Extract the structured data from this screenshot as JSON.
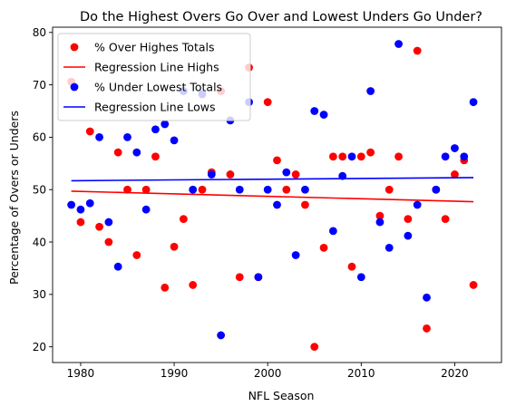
{
  "chart_data": {
    "type": "scatter",
    "title": "Do the Highest Overs Go Over and Lowest Unders Go Under?",
    "xlabel": "NFL Season",
    "ylabel": "Percentage of Overs or Unders",
    "xlim": [
      1977,
      2025
    ],
    "ylim": [
      17,
      81
    ],
    "xticks": [
      1980,
      1990,
      2000,
      2010,
      2020
    ],
    "yticks": [
      20,
      30,
      40,
      50,
      60,
      70,
      80
    ],
    "grid": false,
    "legend_position": "top-left",
    "series": [
      {
        "name": "% Over Highes Totals",
        "kind": "scatter",
        "color": "#ff0000",
        "x": [
          1979,
          1980,
          1981,
          1982,
          1983,
          1984,
          1985,
          1986,
          1987,
          1988,
          1989,
          1990,
          1991,
          1992,
          1993,
          1994,
          1995,
          1996,
          1997,
          1998,
          1999,
          2000,
          2001,
          2002,
          2003,
          2004,
          2005,
          2006,
          2007,
          2008,
          2009,
          2010,
          2011,
          2012,
          2013,
          2014,
          2015,
          2016,
          2017,
          2018,
          2019,
          2020,
          2021,
          2022
        ],
        "y": [
          70.6,
          43.8,
          61.1,
          42.9,
          40.0,
          57.1,
          50.0,
          37.5,
          50.0,
          56.3,
          31.3,
          39.1,
          44.4,
          31.8,
          50.0,
          53.3,
          68.8,
          52.9,
          33.3,
          73.3,
          33.3,
          66.7,
          55.6,
          50.0,
          52.9,
          47.1,
          20.0,
          38.9,
          56.3,
          56.3,
          35.3,
          56.3,
          57.1,
          45.0,
          50.0,
          56.3,
          44.4,
          76.5,
          23.5,
          50.0,
          44.4,
          52.9,
          55.6,
          31.8
        ]
      },
      {
        "name": "Regression Line Highs",
        "kind": "line",
        "color": "#ff0000",
        "x": [
          1979,
          2022
        ],
        "y": [
          49.7,
          47.7
        ]
      },
      {
        "name": "% Under Lowest Totals",
        "kind": "scatter",
        "color": "#0000ff",
        "x": [
          1979,
          1980,
          1981,
          1982,
          1983,
          1984,
          1985,
          1986,
          1987,
          1988,
          1989,
          1990,
          1991,
          1992,
          1993,
          1994,
          1995,
          1996,
          1997,
          1998,
          1999,
          2000,
          2001,
          2002,
          2003,
          2004,
          2005,
          2006,
          2007,
          2008,
          2009,
          2010,
          2011,
          2012,
          2013,
          2014,
          2015,
          2016,
          2017,
          2018,
          2019,
          2020,
          2021,
          2022
        ],
        "y": [
          47.1,
          46.2,
          47.4,
          60.0,
          43.8,
          35.3,
          60.0,
          57.1,
          46.2,
          61.5,
          62.5,
          59.4,
          68.8,
          50.0,
          68.2,
          52.9,
          22.2,
          63.2,
          50.0,
          66.7,
          33.3,
          50.0,
          47.1,
          53.3,
          37.5,
          50.0,
          65.0,
          64.3,
          42.1,
          52.6,
          56.3,
          33.3,
          68.8,
          43.8,
          38.9,
          77.8,
          41.2,
          47.1,
          29.4,
          50.0,
          56.3,
          57.9,
          56.3,
          66.7
        ]
      },
      {
        "name": "Regression Line Lows",
        "kind": "line",
        "color": "#0000ff",
        "x": [
          1979,
          2022
        ],
        "y": [
          51.7,
          52.3
        ]
      }
    ]
  }
}
